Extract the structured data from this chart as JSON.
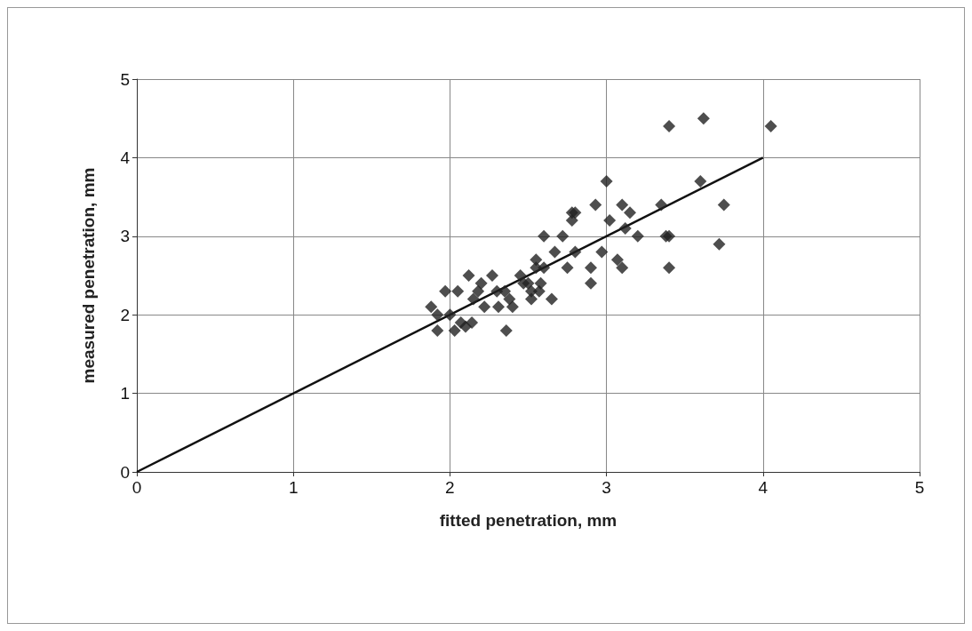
{
  "chart_data": {
    "type": "scatter",
    "xlabel": "fitted penetration, mm",
    "ylabel": "measured penetration, mm",
    "xlim": [
      0,
      5
    ],
    "ylim": [
      0,
      5
    ],
    "xticks": [
      0,
      1,
      2,
      3,
      4,
      5
    ],
    "yticks": [
      0,
      1,
      2,
      3,
      4,
      5
    ],
    "grid": true,
    "marker": "diamond",
    "series": [
      {
        "color": "#222222",
        "x": [
          1.88,
          1.92,
          1.92,
          1.97,
          2.0,
          2.03,
          2.05,
          2.07,
          2.1,
          2.12,
          2.14,
          2.15,
          2.18,
          2.2,
          2.22,
          2.27,
          2.3,
          2.31,
          2.35,
          2.36,
          2.38,
          2.4,
          2.45,
          2.47,
          2.5,
          2.52,
          2.52,
          2.55,
          2.55,
          2.57,
          2.58,
          2.6,
          2.6,
          2.65,
          2.67,
          2.72,
          2.75,
          2.78,
          2.78,
          2.8,
          2.8,
          2.9,
          2.9,
          2.93,
          2.97,
          3.0,
          3.02,
          3.07,
          3.1,
          3.1,
          3.12,
          3.15,
          3.2,
          3.35,
          3.38,
          3.4,
          3.4,
          3.4,
          3.6,
          3.62,
          3.72,
          3.75,
          4.05
        ],
        "values": [
          2.1,
          2.0,
          1.8,
          2.3,
          2.0,
          1.8,
          2.3,
          1.9,
          1.85,
          2.5,
          1.9,
          2.2,
          2.3,
          2.4,
          2.1,
          2.5,
          2.3,
          2.1,
          2.3,
          1.8,
          2.2,
          2.1,
          2.5,
          2.4,
          2.4,
          2.3,
          2.2,
          2.6,
          2.7,
          2.3,
          2.4,
          3.0,
          2.6,
          2.2,
          2.8,
          3.0,
          2.6,
          3.3,
          3.2,
          2.8,
          3.3,
          2.4,
          2.6,
          3.4,
          2.8,
          3.7,
          3.2,
          2.7,
          2.6,
          3.4,
          3.1,
          3.3,
          3.0,
          3.4,
          3.0,
          3.0,
          2.6,
          4.4,
          3.7,
          4.5,
          2.9,
          3.4,
          4.4
        ]
      },
      {
        "type": "line",
        "color": "#111111",
        "x": [
          0,
          4
        ],
        "values": [
          0,
          4
        ],
        "marker": "none"
      }
    ]
  }
}
